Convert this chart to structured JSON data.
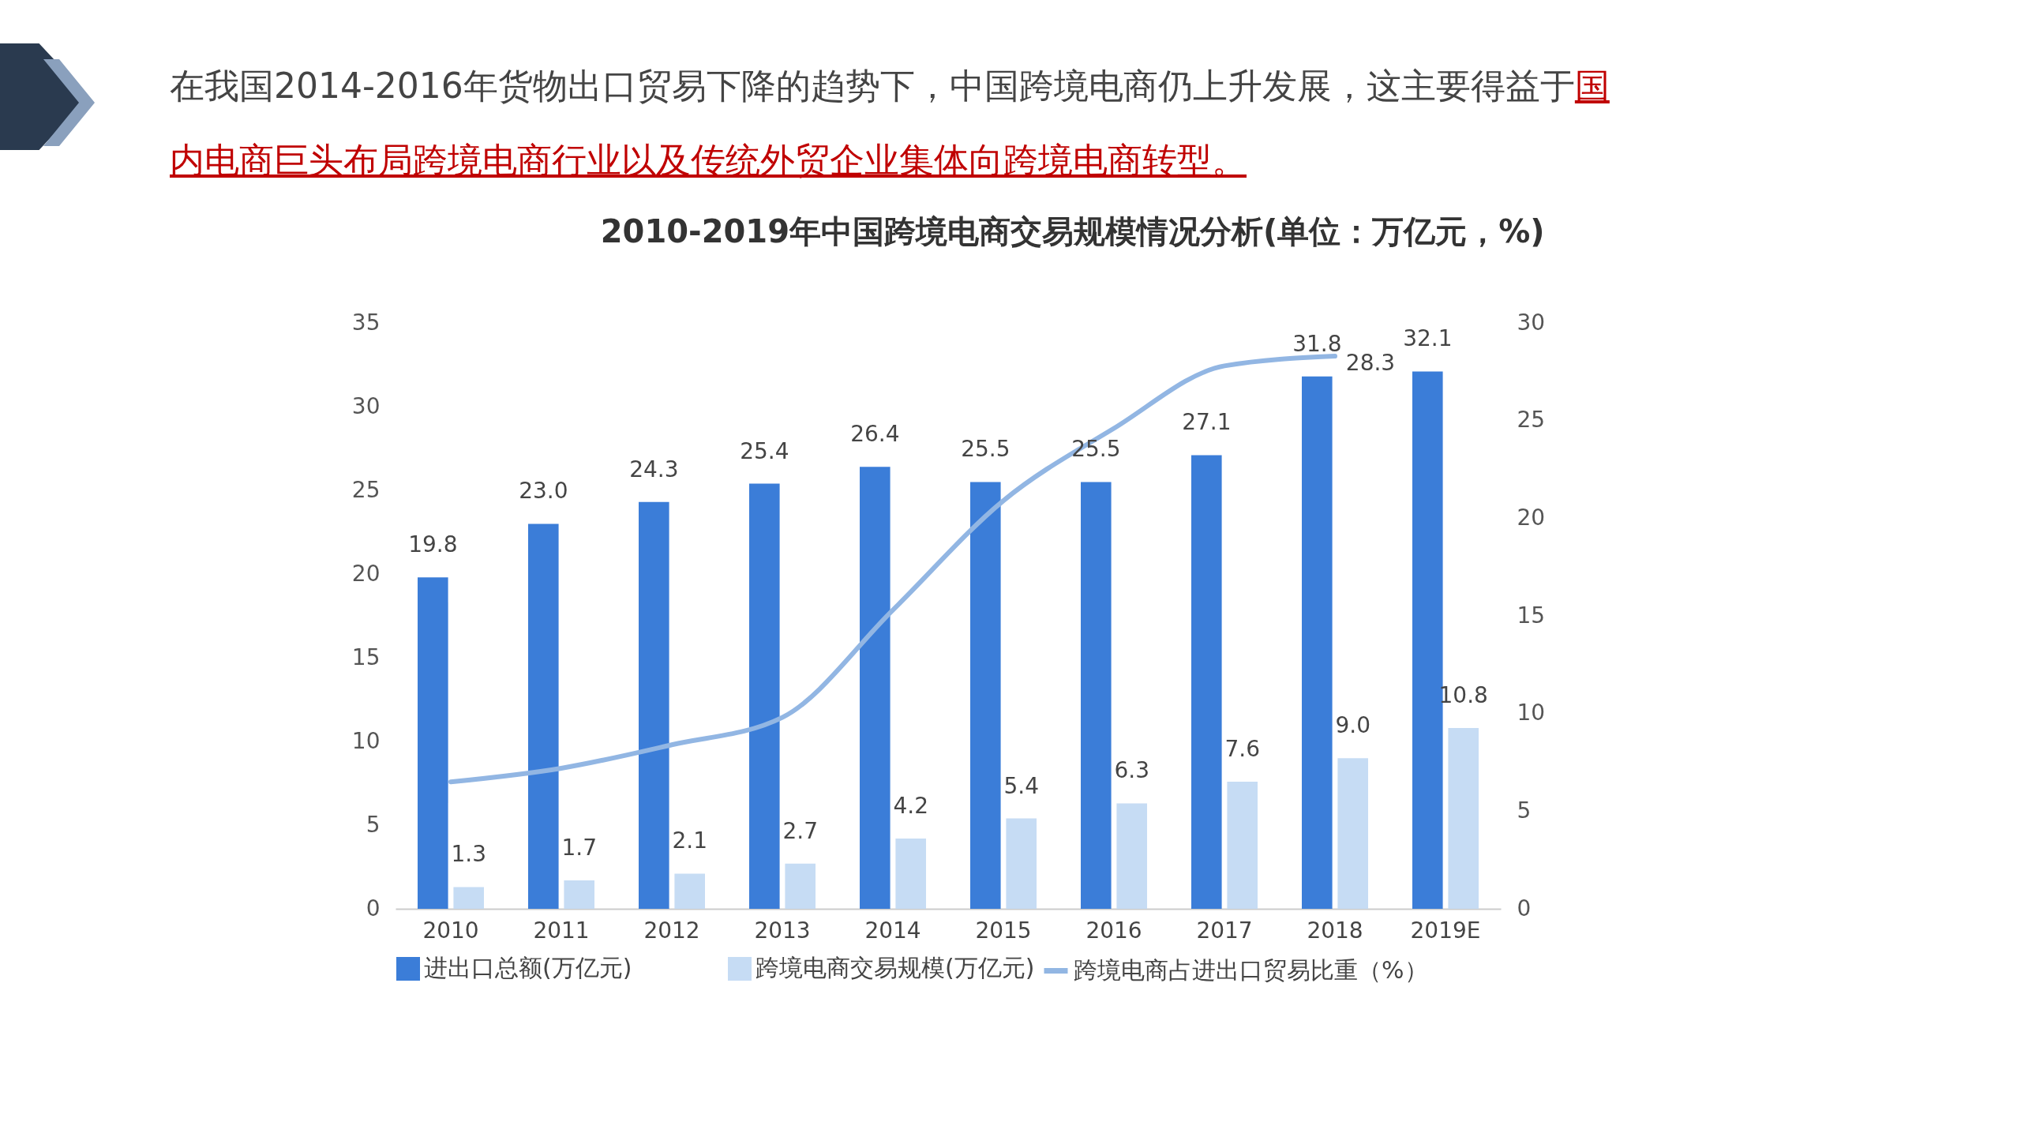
{
  "chart_data": {
    "type": "bar",
    "title": "2010-2019年中国跨境电商交易规模情况分析(单位：万亿元，%)",
    "annotations": [
      "在我国2014-2016年货物出口贸易下降的趋势下，中国跨境电商仍上升发展，这主要得益于",
      "国内电商巨头布局跨境电商行业以及传统外贸企业集体向跨境电商转型。"
    ],
    "categories": [
      "2010",
      "2011",
      "2012",
      "2013",
      "2014",
      "2015",
      "2016",
      "2017",
      "2018",
      "2019E"
    ],
    "series": [
      {
        "name": "进出口总额(万亿元)",
        "color": "#3b7dd8",
        "values": [
          19.8,
          23.0,
          24.3,
          25.4,
          26.4,
          25.5,
          25.5,
          27.1,
          31.8,
          32.1
        ],
        "value_labels": [
          "19.8",
          "23.0",
          "24.3",
          "25.4",
          "26.4",
          "25.5",
          "25.5",
          "27.1",
          "31.8",
          "32.1"
        ]
      },
      {
        "name": "跨境电商交易规模(万亿元)",
        "color": "#c6dcf4",
        "values": [
          1.3,
          1.7,
          2.1,
          2.7,
          4.2,
          5.4,
          6.3,
          7.6,
          9.0,
          10.8
        ],
        "value_labels": [
          "1.3",
          "1.7",
          "2.1",
          "2.7",
          "4.2",
          "5.4",
          "6.3",
          "7.6",
          "9.0",
          "10.8"
        ]
      },
      {
        "name": "跨境电商占进出口贸易比重（%）",
        "type": "line",
        "axis": "y2",
        "color": "#92b6e3",
        "values": [
          6.5,
          7.2,
          8.4,
          9.8,
          15.3,
          20.9,
          24.6,
          27.8,
          28.3,
          null
        ],
        "value_labels": [
          null,
          null,
          null,
          null,
          null,
          null,
          null,
          null,
          "28.3",
          null
        ]
      }
    ],
    "ylim": [
      0,
      35
    ],
    "yticks": [
      0,
      5,
      10,
      15,
      20,
      25,
      30,
      35
    ],
    "y2lim": [
      0,
      30
    ],
    "y2ticks": [
      0,
      5,
      10,
      15,
      20,
      25,
      30
    ],
    "legend": "bottom"
  }
}
